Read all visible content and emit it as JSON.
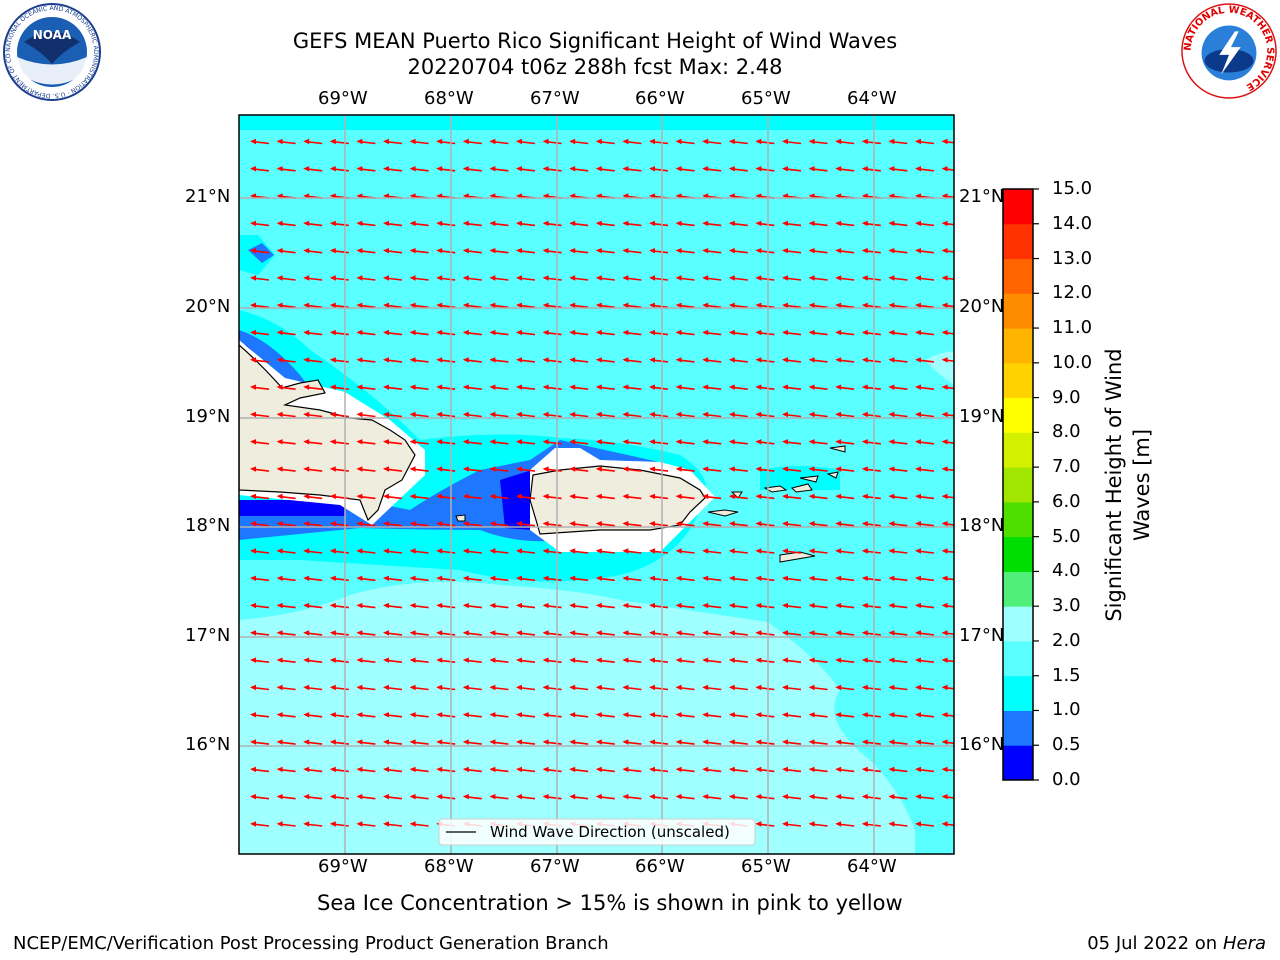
{
  "title": {
    "line1": "GEFS MEAN Puerto Rico Significant Height of Wind Waves",
    "line2": "20220704 t06z 288h fcst   Max: 2.48"
  },
  "map": {
    "lon_labels": [
      "69°W",
      "68°W",
      "67°W",
      "66°W",
      "65°W",
      "64°W"
    ],
    "lat_labels": [
      "21°N",
      "20°N",
      "19°N",
      "18°N",
      "17°N",
      "16°N"
    ],
    "legend_text": "Wind Wave Direction (unscaled)",
    "land_color": "#efeddd",
    "arrow_color": "#ff0000"
  },
  "colorbar": {
    "label": "Significant Height of Wind Waves [m]",
    "label_line1": "Significant Height of Wind",
    "label_line2": "Waves [m]",
    "ticks": [
      "0.0",
      "0.5",
      "1.0",
      "1.5",
      "2.0",
      "3.0",
      "4.0",
      "5.0",
      "6.0",
      "7.0",
      "8.0",
      "9.0",
      "10.0",
      "11.0",
      "12.0",
      "13.0",
      "14.0",
      "15.0"
    ],
    "colors": [
      "#0000ff",
      "#1e78ff",
      "#00ffff",
      "#5affff",
      "#a0ffff",
      "#4fef7a",
      "#00dd00",
      "#50dd00",
      "#a0e600",
      "#d2f000",
      "#ffff00",
      "#ffd200",
      "#ffb400",
      "#ff8c00",
      "#ff6400",
      "#ff3200",
      "#ff0000"
    ]
  },
  "sea_ice_note": "Sea Ice Concentration > 15% is shown in pink to yellow",
  "footer": {
    "left": "NCEP/EMC/Verification Post Processing Product Generation Branch",
    "right_date": "05 Jul 2022 on ",
    "right_host": "Hera"
  },
  "logos": {
    "noaa_text": "NOAA",
    "noaa_ring": "NATIONAL OCEANIC AND ATMOSPHERIC ADMINISTRATION · U.S. DEPARTMENT OF COMMERCE",
    "nws_ring": "NATIONAL WEATHER SERVICE"
  }
}
